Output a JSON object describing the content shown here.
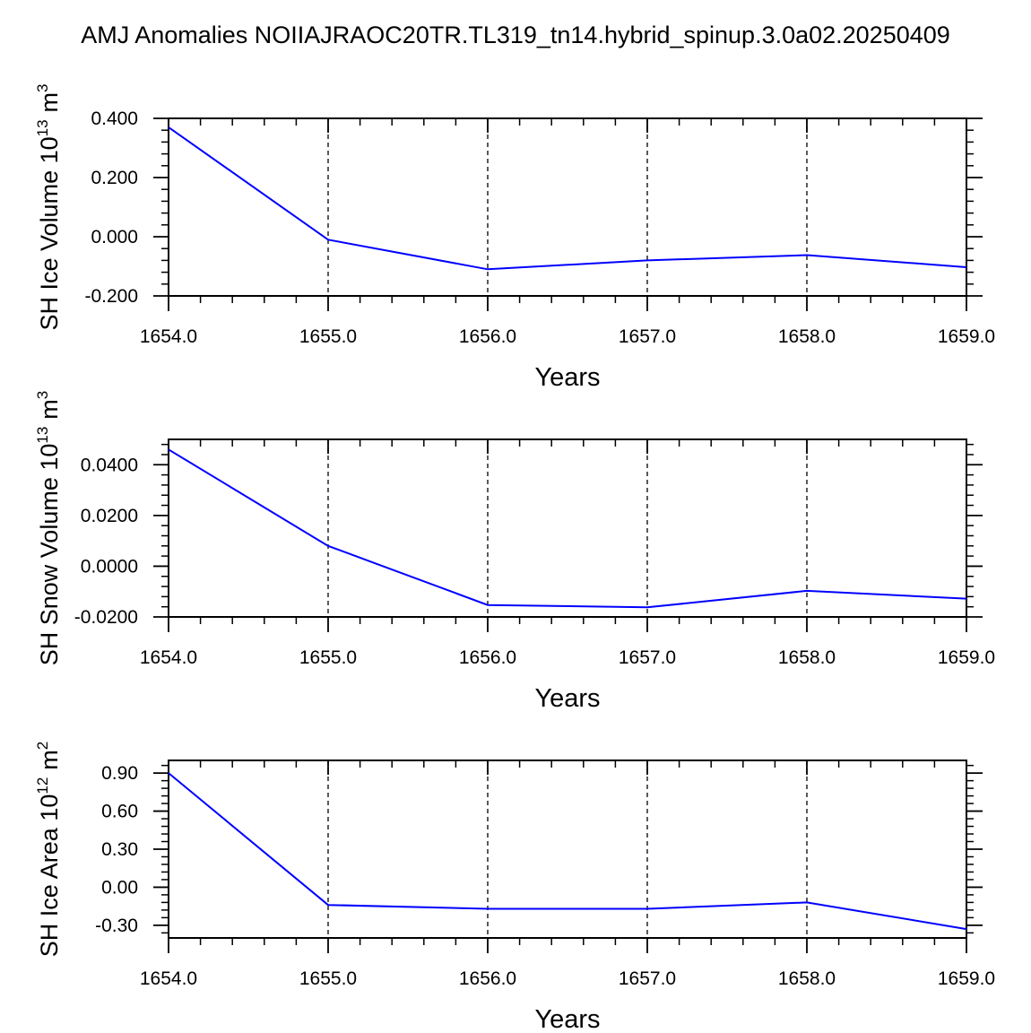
{
  "title": "AMJ Anomalies NOIIAJRAOC20TR.TL319_tn14.hybrid_spinup.3.0a02.20250409",
  "colors": {
    "series": "#0000ff",
    "axis": "#000000",
    "grid": "#000000"
  },
  "chart_data": [
    {
      "type": "line",
      "ylabel": {
        "text": "SH Ice Volume 10",
        "exp": "13",
        "unit": "m",
        "unit_exp": "3"
      },
      "xlabel": "Years",
      "x": [
        1654.0,
        1655.0,
        1656.0,
        1657.0,
        1658.0,
        1659.0
      ],
      "xlim": [
        1654.0,
        1659.0
      ],
      "xticks": [
        1654.0,
        1655.0,
        1656.0,
        1657.0,
        1658.0,
        1659.0
      ],
      "xtick_labels": [
        "1654.0",
        "1655.0",
        "1656.0",
        "1657.0",
        "1658.0",
        "1659.0"
      ],
      "ylim": [
        -0.2,
        0.4
      ],
      "yticks": [
        -0.2,
        0.0,
        0.2,
        0.4
      ],
      "ytick_labels": [
        "-0.200",
        "0.000",
        "0.200",
        "0.400"
      ],
      "values": [
        0.37,
        -0.01,
        -0.11,
        -0.08,
        -0.062,
        -0.103
      ],
      "grid": "vertical dashed"
    },
    {
      "type": "line",
      "ylabel": {
        "text": "SH Snow Volume 10",
        "exp": "13",
        "unit": "m",
        "unit_exp": "3"
      },
      "xlabel": "Years",
      "x": [
        1654.0,
        1655.0,
        1656.0,
        1657.0,
        1658.0,
        1659.0
      ],
      "xlim": [
        1654.0,
        1659.0
      ],
      "xticks": [
        1654.0,
        1655.0,
        1656.0,
        1657.0,
        1658.0,
        1659.0
      ],
      "xtick_labels": [
        "1654.0",
        "1655.0",
        "1656.0",
        "1657.0",
        "1658.0",
        "1659.0"
      ],
      "ylim": [
        -0.02,
        0.05
      ],
      "yticks": [
        -0.02,
        0.0,
        0.02,
        0.04
      ],
      "ytick_labels": [
        "-0.0200",
        "0.0000",
        "0.0200",
        "0.0400"
      ],
      "values": [
        0.046,
        0.008,
        -0.0153,
        -0.0162,
        -0.0097,
        -0.0128
      ],
      "grid": "vertical dashed"
    },
    {
      "type": "line",
      "ylabel": {
        "text": "SH Ice Area 10",
        "exp": "12",
        "unit": "m",
        "unit_exp": "2"
      },
      "xlabel": "Years",
      "x": [
        1654.0,
        1655.0,
        1656.0,
        1657.0,
        1658.0,
        1659.0
      ],
      "xlim": [
        1654.0,
        1659.0
      ],
      "xticks": [
        1654.0,
        1655.0,
        1656.0,
        1657.0,
        1658.0,
        1659.0
      ],
      "xtick_labels": [
        "1654.0",
        "1655.0",
        "1656.0",
        "1657.0",
        "1658.0",
        "1659.0"
      ],
      "ylim": [
        -0.4,
        1.0
      ],
      "yticks": [
        -0.3,
        0.0,
        0.3,
        0.6,
        0.9
      ],
      "ytick_labels": [
        "-0.30",
        "0.00",
        "0.30",
        "0.60",
        "0.90"
      ],
      "values": [
        0.9,
        -0.14,
        -0.17,
        -0.17,
        -0.12,
        -0.33
      ],
      "grid": "vertical dashed"
    }
  ]
}
